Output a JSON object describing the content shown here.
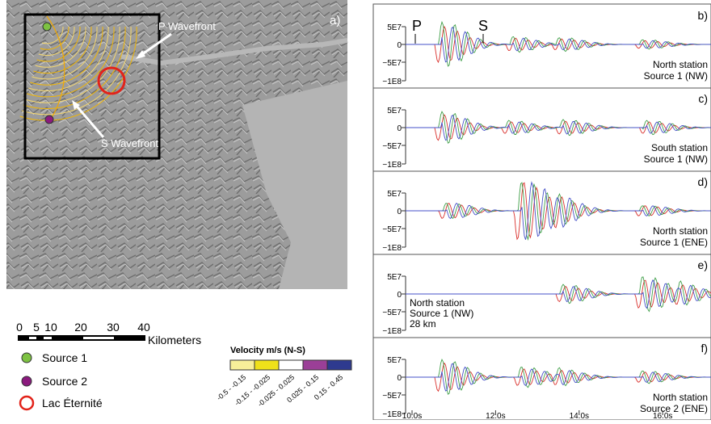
{
  "panel_a": {
    "label": "a)",
    "annotations": [
      "P Wavefront",
      "S Wavefront"
    ],
    "scale_bar": {
      "ticks": [
        "0",
        "5",
        "10",
        "20",
        "30",
        "40"
      ],
      "unit": "Kilometers"
    },
    "legend": [
      "Source 1",
      "Source 2",
      "Lac Éternité"
    ],
    "velocity_legend": {
      "title": "Velocity m/s (N-S)",
      "classes": [
        "-0.5 - -0.15",
        "-0.15 - -0.025",
        "-0.025 - 0.025",
        "0.025 - 0.15",
        "0.15 - 0.45"
      ]
    }
  },
  "phase_labels": [
    "P",
    "S"
  ],
  "traces": [
    {
      "label": "b)",
      "yticks": [
        "5E7",
        "0",
        "−5E7",
        "−1E8"
      ],
      "text": [
        "North station",
        "Source 1 (NW)"
      ]
    },
    {
      "label": "c)",
      "yticks": [
        "5E7",
        "0",
        "−5E7",
        "−1E8"
      ],
      "text": [
        "South station",
        "Source 1 (NW)"
      ]
    },
    {
      "label": "d)",
      "yticks": [
        "5E7",
        "0",
        "−5E7",
        "−1E8"
      ],
      "text": [
        "North station",
        "Source 1 (ENE)"
      ]
    },
    {
      "label": "e)",
      "yticks": [
        "5E7",
        "0",
        "−5E7",
        "−1E8"
      ],
      "text": [
        "North station",
        "Source 1 (NW)",
        "28 km"
      ]
    },
    {
      "label": "f)",
      "yticks": [
        "5E7",
        "0",
        "−5E7",
        "−1E8"
      ],
      "text": [
        "North station",
        "Source 2 (ENE)"
      ]
    }
  ],
  "xticks": [
    "10.0s",
    "12.0s",
    "14.0s",
    "16.0s"
  ]
}
